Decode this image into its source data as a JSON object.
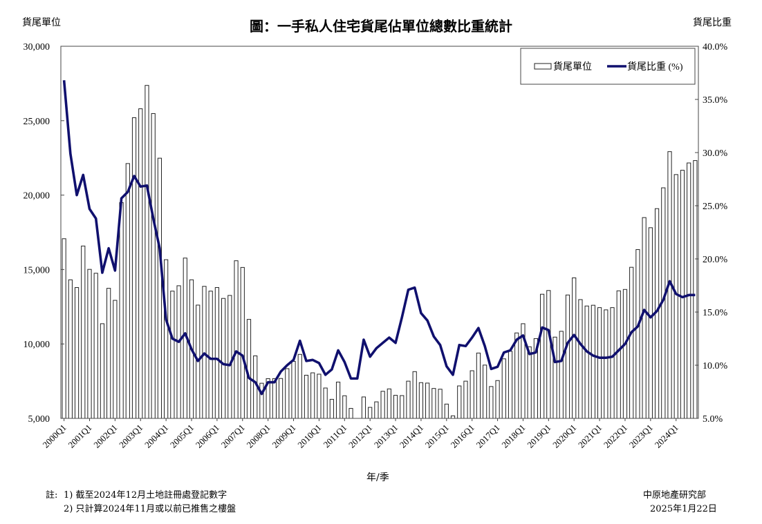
{
  "chart_data": {
    "type": "bar+line",
    "title": "圖：一手私人住宅貨尾佔單位總數比重統計",
    "ylabel_left": "貨尾單位",
    "ylabel_right": "貨尾比重",
    "xlabel": "年/季",
    "ylim_left": [
      5000,
      30000
    ],
    "ylim_right": [
      5.0,
      40.0
    ],
    "yticks_left": [
      "5,000",
      "10,000",
      "15,000",
      "20,000",
      "25,000",
      "30,000"
    ],
    "yticks_right": [
      "5.0%",
      "10.0%",
      "15.0%",
      "20.0%",
      "25.0%",
      "30.0%",
      "35.0%",
      "40.0%"
    ],
    "xticks": [
      "2000Q1",
      "2001Q1",
      "2002Q1",
      "2003Q1",
      "2004Q1",
      "2005Q1",
      "2006Q1",
      "2007Q1",
      "2008Q1",
      "2009Q1",
      "2010Q1",
      "2011Q1",
      "2012Q1",
      "2013Q1",
      "2014Q1",
      "2015Q1",
      "2016Q1",
      "2017Q1",
      "2018Q1",
      "2019Q1",
      "2020Q1",
      "2021Q1",
      "2022Q1",
      "2023Q1",
      "2024Q1"
    ],
    "categories": [
      "2000Q1",
      "2000Q2",
      "2000Q3",
      "2000Q4",
      "2001Q1",
      "2001Q2",
      "2001Q3",
      "2001Q4",
      "2002Q1",
      "2002Q2",
      "2002Q3",
      "2002Q4",
      "2003Q1",
      "2003Q2",
      "2003Q3",
      "2003Q4",
      "2004Q1",
      "2004Q2",
      "2004Q3",
      "2004Q4",
      "2005Q1",
      "2005Q2",
      "2005Q3",
      "2005Q4",
      "2006Q1",
      "2006Q2",
      "2006Q3",
      "2006Q4",
      "2007Q1",
      "2007Q2",
      "2007Q3",
      "2007Q4",
      "2008Q1",
      "2008Q2",
      "2008Q3",
      "2008Q4",
      "2009Q1",
      "2009Q2",
      "2009Q3",
      "2009Q4",
      "2010Q1",
      "2010Q2",
      "2010Q3",
      "2010Q4",
      "2011Q1",
      "2011Q2",
      "2011Q3",
      "2011Q4",
      "2012Q1",
      "2012Q2",
      "2012Q3",
      "2012Q4",
      "2013Q1",
      "2013Q2",
      "2013Q3",
      "2013Q4",
      "2014Q1",
      "2014Q2",
      "2014Q3",
      "2014Q4",
      "2015Q1",
      "2015Q2",
      "2015Q3",
      "2015Q4",
      "2016Q1",
      "2016Q2",
      "2016Q3",
      "2016Q4",
      "2017Q1",
      "2017Q2",
      "2017Q3",
      "2017Q4",
      "2018Q1",
      "2018Q2",
      "2018Q3",
      "2018Q4",
      "2019Q1",
      "2019Q2",
      "2019Q3",
      "2019Q4",
      "2020Q1",
      "2020Q2",
      "2020Q3",
      "2020Q4",
      "2021Q1",
      "2021Q2",
      "2021Q3",
      "2021Q4",
      "2022Q1",
      "2022Q2",
      "2022Q3",
      "2022Q4",
      "2023Q1",
      "2023Q2",
      "2023Q3",
      "2023Q4",
      "2024Q1",
      "2024Q2",
      "2024Q3",
      "2024Q4"
    ],
    "series": [
      {
        "name": "貨尾單位",
        "type": "bar",
        "axis": "left",
        "values": [
          17070,
          14310,
          13790,
          16580,
          15010,
          14750,
          11360,
          13740,
          12930,
          19500,
          22120,
          25200,
          25800,
          27370,
          25480,
          22480,
          15660,
          13550,
          13910,
          15770,
          14310,
          12610,
          13870,
          13550,
          13790,
          13060,
          13260,
          15590,
          15140,
          11650,
          9200,
          7360,
          7670,
          7670,
          7680,
          8340,
          8830,
          9300,
          7900,
          8060,
          7970,
          7040,
          6280,
          7440,
          6520,
          5670,
          4900,
          6440,
          5740,
          6110,
          6820,
          6980,
          6550,
          6530,
          7500,
          8140,
          7400,
          7370,
          7010,
          6960,
          5960,
          5170,
          7180,
          7500,
          8200,
          9390,
          8580,
          7140,
          7540,
          9000,
          9510,
          10740,
          11360,
          9810,
          10360,
          13340,
          13590,
          10460,
          10850,
          13290,
          14440,
          12980,
          12550,
          12600,
          12440,
          12290,
          12440,
          13570,
          13660,
          15150,
          16340,
          18490,
          17810,
          19090,
          20490,
          22920,
          21380,
          21670,
          22160,
          22320
        ]
      },
      {
        "name": "貨尾比重 (%)",
        "type": "line",
        "axis": "right",
        "values": [
          36.8,
          29.9,
          26.0,
          27.9,
          24.7,
          23.8,
          18.7,
          21.0,
          18.9,
          25.7,
          26.3,
          27.8,
          26.8,
          26.9,
          23.8,
          21.0,
          14.3,
          12.5,
          12.2,
          13.0,
          11.5,
          10.4,
          11.1,
          10.6,
          10.6,
          10.1,
          10.0,
          11.3,
          10.9,
          8.8,
          8.4,
          7.3,
          8.4,
          8.4,
          9.4,
          10.0,
          10.5,
          12.3,
          10.4,
          10.5,
          10.2,
          9.1,
          9.6,
          11.4,
          10.3,
          8.75,
          8.75,
          12.4,
          10.8,
          11.6,
          12.1,
          12.6,
          12.1,
          14.5,
          17.1,
          17.3,
          14.9,
          14.2,
          12.7,
          11.9,
          9.9,
          9.1,
          11.9,
          11.8,
          12.6,
          13.5,
          11.8,
          9.65,
          9.85,
          11.2,
          11.4,
          12.4,
          12.8,
          11.05,
          11.2,
          13.55,
          13.3,
          10.3,
          10.4,
          12.1,
          12.85,
          12.0,
          11.3,
          10.9,
          10.7,
          10.7,
          10.8,
          11.4,
          12.0,
          13.1,
          13.65,
          15.2,
          14.5,
          15.1,
          16.15,
          17.9,
          16.7,
          16.4,
          16.6,
          16.6
        ]
      }
    ],
    "legend_placement": "top-right",
    "grid": false,
    "colors": {
      "line": "#10106e",
      "bar_fill": "#ffffff",
      "bar_stroke": "#222222"
    }
  },
  "notes": {
    "prefix": "註:",
    "note1": "1) 截至2024年12月土地註冊處登記數字",
    "note2": "2) 只計算2024年11月或以前已推售之樓盤"
  },
  "source": {
    "org": "中原地產研究部",
    "date": "2025年1月22日"
  }
}
